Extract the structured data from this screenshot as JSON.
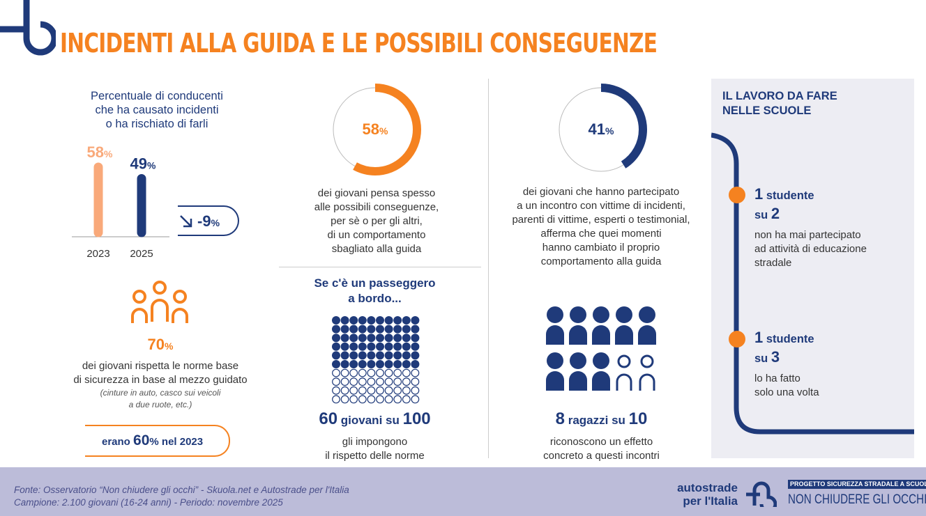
{
  "title": "INCIDENTI ALLA GUIDA E LE POSSIBILI CONSEGUENZE",
  "colors": {
    "orange": "#f58220",
    "light_orange": "#f9a97a",
    "navy": "#1f3a7a",
    "panel": "#ededf3",
    "footer": "#bcbcd9"
  },
  "chart_data": {
    "type": "bar",
    "title": "Percentuale di conducenti che ha causato incidenti o ha rischiato di farli",
    "categories": [
      "2023",
      "2025"
    ],
    "values": [
      58,
      49
    ],
    "value_labels": [
      "58",
      "49"
    ],
    "unit": "%",
    "change": "-9"
  },
  "drivers": {
    "line1": "Percentuale di conducenti",
    "line2": "che ha causato incidenti",
    "line3": "o ha rischiato di farli",
    "change_icon": "arrow-down-right-icon"
  },
  "donut1": {
    "value": 58,
    "label": "58",
    "unit": "%",
    "lines": [
      "dei giovani pensa spesso",
      "alle possibili conseguenze,",
      "per sè o per gli altri,",
      "di un comportamento",
      "sbagliato alla guida"
    ]
  },
  "donut2": {
    "value": 41,
    "label": "41",
    "unit": "%",
    "lines": [
      "dei giovani che hanno partecipato",
      "a un incontro con vittime di incidenti,",
      "parenti di vittime, esperti o testimonial,",
      "afferma che quei momenti",
      "hanno cambiato il proprio",
      "comportamento alla guida"
    ]
  },
  "norms": {
    "icon": "people-group-icon",
    "value": "70",
    "unit": "%",
    "lines": [
      "dei giovani rispetta le norme base",
      "di sicurezza in base al mezzo guidato"
    ],
    "note": [
      "(cinture in auto, casco sui veicoli",
      "a due ruote, etc.)"
    ],
    "pill_pre": "erano",
    "pill_value": "60",
    "pill_unit": "%",
    "pill_post": "nel 2023"
  },
  "passenger": {
    "heading1": "Se c'è un passeggero",
    "heading2": "a bordo...",
    "filled": 60,
    "total": 100,
    "n": "60",
    "mid": "giovani su",
    "d": "100",
    "lines": [
      "gli impongono",
      "il rispetto delle norme"
    ]
  },
  "meetings": {
    "filled": 8,
    "total": 10,
    "n": "8",
    "mid": "ragazzi su",
    "d": "10",
    "lines": [
      "riconoscono un effetto",
      "concreto a questi incontri"
    ]
  },
  "school": {
    "heading1": "IL LAVORO DA FARE",
    "heading2": "NELLE SCUOLE",
    "items": [
      {
        "n": "1",
        "w": "studente",
        "su": "su",
        "d": "2",
        "lines": [
          "non ha mai partecipato",
          "ad attività di educazione",
          "stradale"
        ]
      },
      {
        "n": "1",
        "w": "studente",
        "su": "su",
        "d": "3",
        "lines": [
          "lo ha fatto",
          "solo una volta"
        ]
      }
    ]
  },
  "footer": {
    "source": "Fonte: Osservatorio “Non chiudere gli occhi” - Skuola.net e Autostrade per l'Italia",
    "sample": "Campione: 2.100 giovani (16-24 anni) - Periodo: novembre 2025",
    "brand1": "autostrade",
    "brand2": "per l'Italia",
    "project_tag": "PROGETTO SICUREZZA STRADALE A SCUOLA",
    "project": "NON CHIUDERE GLI OCCHI"
  }
}
